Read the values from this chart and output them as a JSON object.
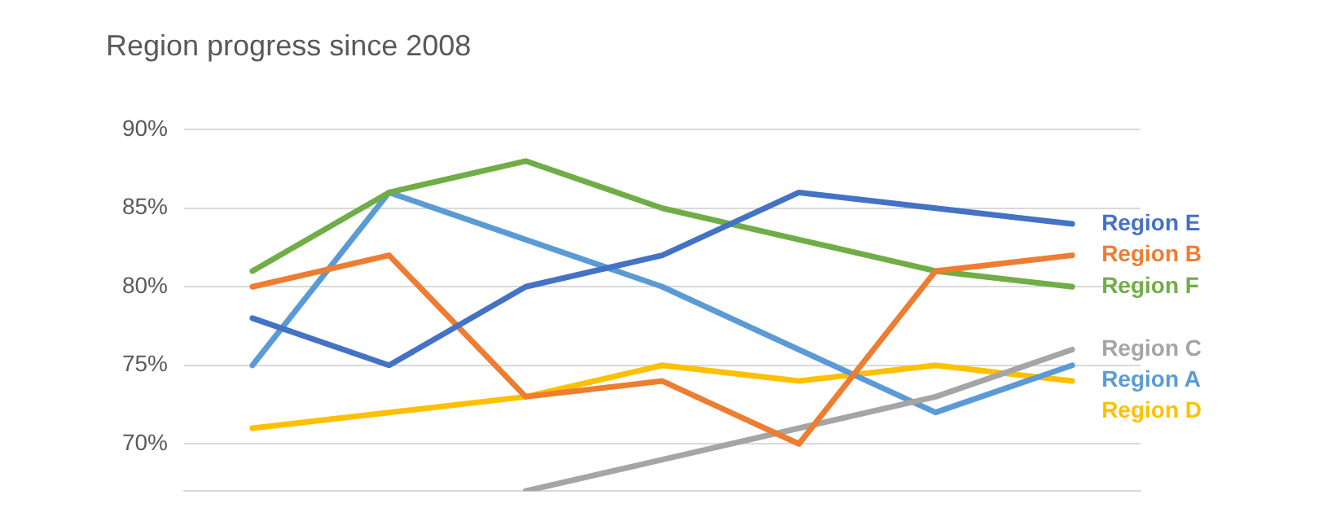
{
  "chart_data": {
    "type": "line",
    "title": "Region progress since 2008",
    "categories": [
      null,
      null,
      null,
      null,
      null,
      null,
      null
    ],
    "ylim": [
      67,
      90
    ],
    "yticks": [
      {
        "value": 70,
        "label": "70%"
      },
      {
        "value": 75,
        "label": "75%"
      },
      {
        "value": 80,
        "label": "80%"
      },
      {
        "value": 85,
        "label": "85%"
      },
      {
        "value": 90,
        "label": "90%"
      }
    ],
    "grid": "y",
    "marker": "none",
    "line_style": "solid",
    "series": [
      {
        "name": "Region E",
        "color": "#4472c4",
        "values": [
          78,
          75,
          80,
          82,
          86,
          85,
          84
        ]
      },
      {
        "name": "Region B",
        "color": "#ed7d31",
        "values": [
          80,
          82,
          73,
          74,
          70,
          81,
          82
        ]
      },
      {
        "name": "Region F",
        "color": "#70ad47",
        "values": [
          81,
          86,
          88,
          85,
          83,
          81,
          80
        ]
      },
      {
        "name": "Region C",
        "color": "#a5a5a5",
        "values": [
          null,
          null,
          67,
          69,
          71,
          73,
          76
        ]
      },
      {
        "name": "Region A",
        "color": "#5b9bd5",
        "values": [
          75,
          86,
          83,
          80,
          76,
          72,
          75
        ]
      },
      {
        "name": "Region D",
        "color": "#ffc000",
        "values": [
          71,
          72,
          73,
          75,
          74,
          75,
          74
        ]
      }
    ]
  }
}
